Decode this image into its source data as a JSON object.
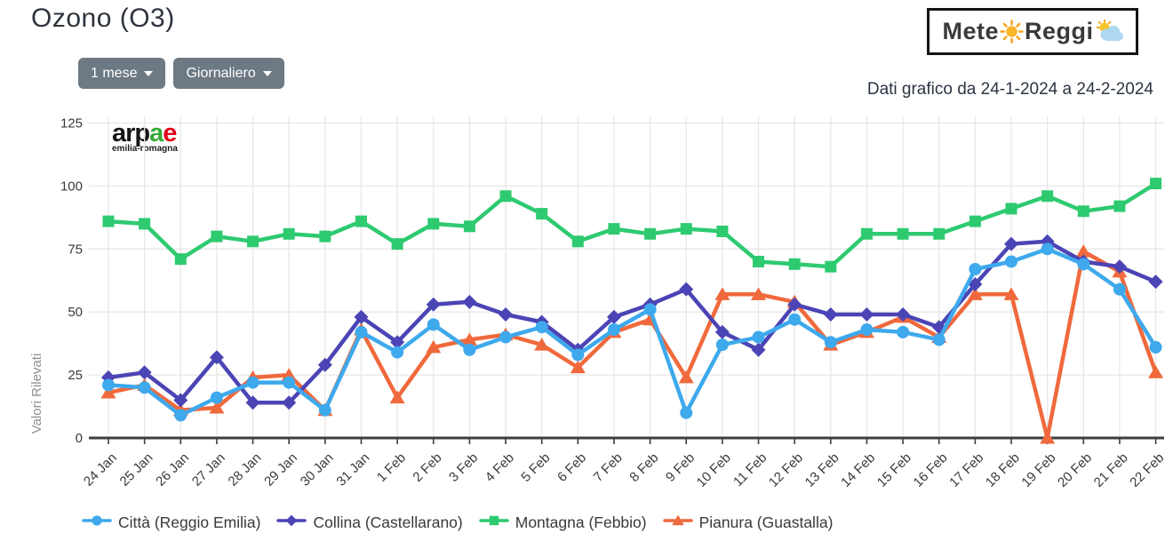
{
  "header": {
    "title": "Ozono (O3)",
    "logo": {
      "part1": "Mete",
      "part2": "Reggi"
    },
    "date_range": "Dati grafico da 24-1-2024 a 24-2-2024"
  },
  "toolbar": {
    "period_button": "1 mese",
    "frequency_button": "Giornaliero"
  },
  "watermark": {
    "text_black": "arp",
    "text_green": "a",
    "text_red": "e",
    "subtext": "emilia-romagna"
  },
  "colors": {
    "grid": "#e7e7e7",
    "axis": "#3e3e3e",
    "tick_label": "#3a3a3a",
    "ylabel_text": "#909090",
    "button_bg": "#6d7983",
    "sun": "#f7a821",
    "cloud": "#aed7f0"
  },
  "chart_data": {
    "type": "line",
    "title": "",
    "xlabel": "",
    "ylabel": "Valori Rilevati",
    "ylim": [
      0,
      125
    ],
    "yticks": [
      0,
      25,
      50,
      75,
      100,
      125
    ],
    "grid": true,
    "legend_position": "bottom",
    "categories": [
      "24 Jan",
      "25 Jan",
      "26 Jan",
      "27 Jan",
      "28 Jan",
      "29 Jan",
      "30 Jan",
      "31 Jan",
      "1 Feb",
      "2 Feb",
      "3 Feb",
      "4 Feb",
      "5 Feb",
      "6 Feb",
      "7 Feb",
      "8 Feb",
      "9 Feb",
      "10 Feb",
      "11 Feb",
      "12 Feb",
      "13 Feb",
      "14 Feb",
      "15 Feb",
      "16 Feb",
      "17 Feb",
      "18 Feb",
      "19 Feb",
      "20 Feb",
      "21 Feb",
      "22 Feb"
    ],
    "series": [
      {
        "name": "Città (Reggio Emilia)",
        "color": "#3ea9ec",
        "marker": "circle",
        "values": [
          21,
          20,
          9,
          16,
          22,
          22,
          11,
          42,
          34,
          45,
          35,
          40,
          44,
          33,
          43,
          51,
          10,
          37,
          40,
          47,
          38,
          43,
          42,
          39,
          67,
          70,
          75,
          69,
          59,
          36
        ]
      },
      {
        "name": "Collina (Castellarano)",
        "color": "#4b44b5",
        "marker": "diamond",
        "values": [
          24,
          26,
          15,
          32,
          14,
          14,
          29,
          48,
          38,
          53,
          54,
          49,
          46,
          35,
          48,
          53,
          59,
          42,
          35,
          53,
          49,
          49,
          49,
          44,
          61,
          77,
          78,
          70,
          68,
          62
        ]
      },
      {
        "name": "Montagna (Febbio)",
        "color": "#2eca70",
        "marker": "square",
        "values": [
          86,
          85,
          71,
          80,
          78,
          81,
          80,
          86,
          77,
          85,
          84,
          96,
          89,
          78,
          83,
          81,
          83,
          82,
          70,
          69,
          68,
          81,
          81,
          81,
          86,
          91,
          96,
          90,
          92,
          101
        ]
      },
      {
        "name": "Pianura (Guastalla)",
        "color": "#f0693c",
        "marker": "triangle",
        "values": [
          18,
          21,
          11,
          12,
          24,
          25,
          11,
          43,
          16,
          36,
          39,
          41,
          37,
          28,
          42,
          47,
          24,
          57,
          57,
          54,
          37,
          42,
          48,
          40,
          57,
          57,
          0,
          74,
          66,
          26
        ]
      }
    ]
  }
}
